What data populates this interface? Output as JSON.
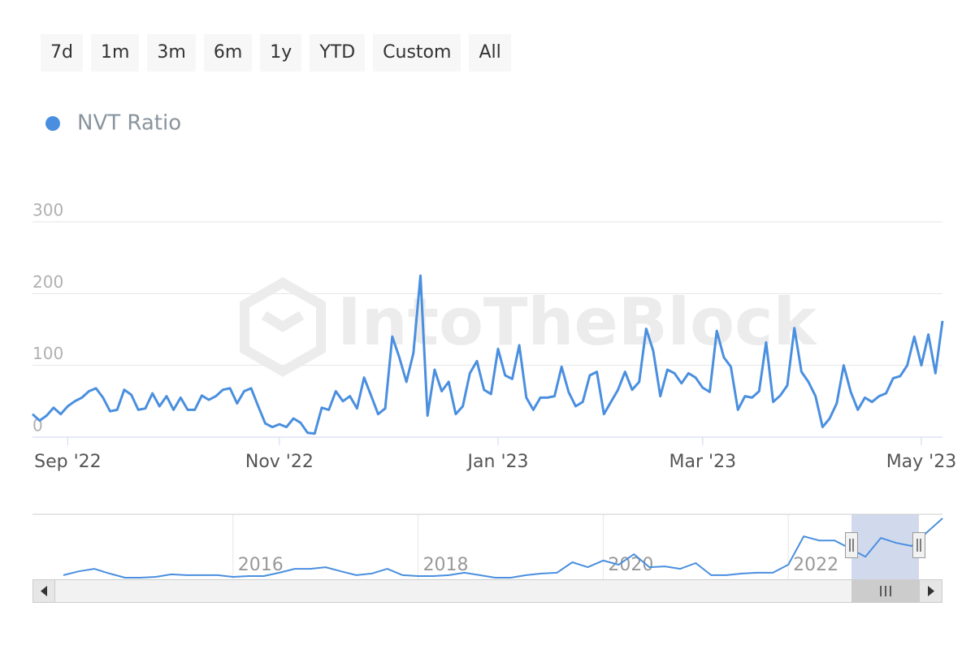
{
  "range_buttons": [
    "7d",
    "1m",
    "3m",
    "6m",
    "1y",
    "YTD",
    "Custom",
    "All"
  ],
  "chart_data": [
    {
      "type": "line",
      "watermark": "IntoTheBlock",
      "categories": [
        null,
        null,
        null,
        null,
        null,
        "Sep '22",
        null,
        null,
        null,
        null,
        null,
        null,
        null,
        null,
        null,
        null,
        null,
        null,
        null,
        null,
        null,
        null,
        null,
        null,
        null,
        null,
        null,
        null,
        null,
        null,
        null,
        null,
        null,
        null,
        null,
        "Nov '22",
        null,
        null,
        null,
        null,
        null,
        null,
        null,
        null,
        null,
        null,
        null,
        null,
        null,
        null,
        null,
        null,
        null,
        null,
        null,
        null,
        null,
        null,
        null,
        null,
        null,
        null,
        null,
        null,
        null,
        null,
        "Jan '23",
        null,
        null,
        null,
        null,
        null,
        null,
        null,
        null,
        null,
        null,
        null,
        null,
        null,
        null,
        null,
        null,
        null,
        null,
        null,
        null,
        null,
        null,
        null,
        null,
        null,
        null,
        null,
        null,
        "Mar '23",
        null,
        null,
        null,
        null,
        null,
        null,
        null,
        null,
        null,
        null,
        null,
        null,
        null,
        null,
        null,
        null,
        null,
        null,
        null,
        null,
        null,
        null,
        null,
        null,
        null,
        null,
        null,
        null,
        null,
        null,
        "May '23",
        null,
        null,
        null
      ],
      "series": [
        {
          "name": "NVT Ratio",
          "color": "#4a8fdf",
          "values": [
            32,
            23,
            30,
            41,
            32,
            43,
            50,
            55,
            64,
            68,
            55,
            36,
            38,
            66,
            59,
            38,
            40,
            61,
            43,
            57,
            38,
            55,
            38,
            38,
            58,
            52,
            57,
            66,
            68,
            47,
            64,
            68,
            43,
            19,
            14,
            18,
            14,
            26,
            20,
            6,
            5,
            41,
            38,
            64,
            50,
            57,
            40,
            83,
            58,
            32,
            40,
            140,
            111,
            77,
            117,
            225,
            30,
            94,
            64,
            77,
            32,
            43,
            89,
            106,
            66,
            60,
            123,
            86,
            81,
            128,
            55,
            38,
            55,
            55,
            57,
            98,
            63,
            43,
            49,
            86,
            91,
            32,
            49,
            66,
            91,
            66,
            77,
            151,
            120,
            57,
            94,
            89,
            75,
            89,
            83,
            69,
            63,
            148,
            111,
            98,
            38,
            57,
            55,
            64,
            132,
            49,
            58,
            72,
            152,
            91,
            77,
            57,
            14,
            26,
            47,
            100,
            63,
            38,
            55,
            49,
            57,
            61,
            82,
            85,
            100,
            140,
            100,
            143,
            89,
            162
          ]
        }
      ],
      "ylim": [
        0,
        300
      ],
      "yticks": [
        0,
        100,
        200,
        300
      ],
      "grid": true
    },
    {
      "type": "line",
      "categories": [
        null,
        null,
        null,
        null,
        null,
        null,
        null,
        null,
        null,
        null,
        null,
        null,
        null,
        "2016",
        null,
        null,
        null,
        null,
        null,
        null,
        null,
        null,
        null,
        null,
        null,
        "2018",
        null,
        null,
        null,
        null,
        null,
        null,
        null,
        null,
        null,
        null,
        null,
        "2020",
        null,
        null,
        null,
        null,
        null,
        null,
        null,
        null,
        null,
        null,
        null,
        "2022",
        null,
        null,
        null,
        null,
        null,
        null,
        null,
        null,
        null,
        null
      ],
      "series": [
        {
          "color": "#4a8fdf",
          "values": [
            null,
            null,
            12,
            26,
            35,
            18,
            3,
            3,
            6,
            15,
            12,
            12,
            12,
            6,
            9,
            9,
            21,
            35,
            35,
            41,
            26,
            12,
            18,
            35,
            12,
            9,
            9,
            12,
            21,
            12,
            3,
            3,
            12,
            18,
            21,
            59,
            41,
            65,
            50,
            88,
            41,
            44,
            35,
            56,
            12,
            12,
            18,
            21,
            21,
            50,
            153,
            138,
            138,
            109,
            79,
            147,
            129,
            118,
            168,
            218
          ]
        }
      ],
      "grid": true
    }
  ]
}
